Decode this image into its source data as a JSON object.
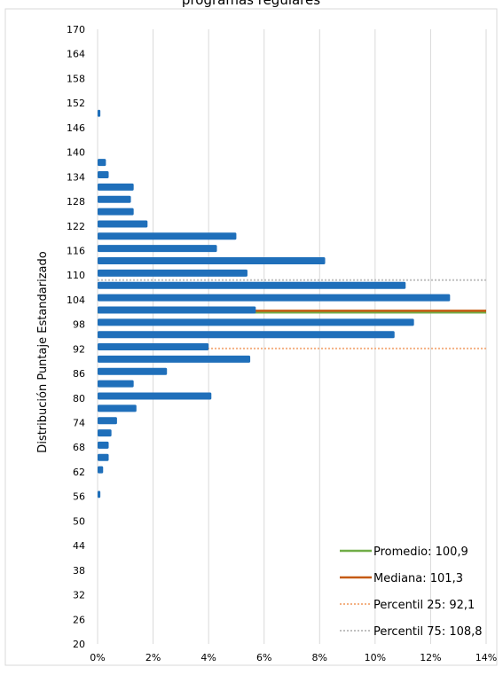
{
  "chart_data": {
    "type": "bar",
    "orientation": "horizontal",
    "title": "programas regulares",
    "xlabel": "",
    "ylabel": "Distribución Puntaje Estandarizado",
    "xlim": [
      0,
      14
    ],
    "ylim": [
      20,
      170
    ],
    "x_tick_labels": [
      "0%",
      "2%",
      "4%",
      "6%",
      "8%",
      "10%",
      "12%",
      "14%"
    ],
    "y_tick_labels": [
      "170",
      "164",
      "158",
      "152",
      "146",
      "140",
      "134",
      "128",
      "122",
      "116",
      "110",
      "104",
      "98",
      "92",
      "86",
      "80",
      "74",
      "68",
      "62",
      "56",
      "50",
      "44",
      "38",
      "32",
      "26",
      "20"
    ],
    "grid": "vertical",
    "bar_color": "#1f6fba",
    "series": [
      {
        "type": "bar",
        "y": [
          56.5,
          62.5,
          65.5,
          68.5,
          71.5,
          74.5,
          77.5,
          80.5,
          83.5,
          86.5,
          89.5,
          92.5,
          95.5,
          98.5,
          101.5,
          104.5,
          107.5,
          110.5,
          113.5,
          116.5,
          119.5,
          122.5,
          125.5,
          128.5,
          131.5,
          134.5,
          137.5,
          149.5
        ],
        "values": [
          0.1,
          0.2,
          0.4,
          0.4,
          0.5,
          0.7,
          1.4,
          4.1,
          1.3,
          2.5,
          5.5,
          4.0,
          10.7,
          11.4,
          5.7,
          12.7,
          11.1,
          5.4,
          8.2,
          4.3,
          5.0,
          1.8,
          1.3,
          1.2,
          1.3,
          0.4,
          0.3,
          0.1
        ]
      }
    ],
    "reference_lines": [
      {
        "name": "Promedio: 100,9",
        "y": 100.9,
        "color": "#70ad47",
        "style": "solid"
      },
      {
        "name": "Mediana: 101,3",
        "y": 101.3,
        "color": "#c55a11",
        "style": "solid"
      },
      {
        "name": "Percentil 25: 92,1",
        "y": 92.1,
        "color": "#f4b183",
        "style": "dotted"
      },
      {
        "name": "Percentil 75: 108,8",
        "y": 108.8,
        "color": "#bfbfbf",
        "style": "dotted"
      }
    ],
    "legend_position": "bottom-right"
  }
}
